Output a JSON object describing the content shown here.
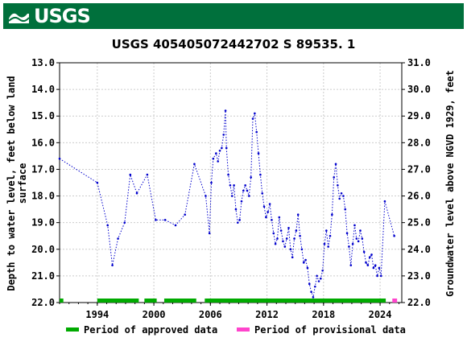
{
  "header": {
    "logo_text": "USGS",
    "color": "#00703c"
  },
  "chart_data": {
    "type": "line",
    "title": "USGS 405405072442702 S 89535. 1",
    "ylabel_left": [
      "Depth to water level, feet below land",
      "surface"
    ],
    "ylabel_right": "Groundwater level above NGVD 1929, feet",
    "y_left_range": [
      22.0,
      13.0
    ],
    "y_right_range": [
      22.0,
      31.0
    ],
    "x_range": [
      1990.0,
      2026.3
    ],
    "x_ticks": [
      {
        "value": 1994,
        "label": "1994"
      },
      {
        "value": 2000,
        "label": "2000"
      },
      {
        "value": 2006,
        "label": "2006"
      },
      {
        "value": 2012,
        "label": "2012"
      },
      {
        "value": 2018,
        "label": "2018"
      },
      {
        "value": 2024,
        "label": "2024"
      }
    ],
    "y_left_ticks": [
      "13.0",
      "14.0",
      "15.0",
      "16.0",
      "17.0",
      "18.0",
      "19.0",
      "20.0",
      "21.0",
      "22.0"
    ],
    "y_right_ticks": [
      "31.0",
      "30.0",
      "29.0",
      "28.0",
      "27.0",
      "26.0",
      "25.0",
      "24.0",
      "23.0",
      "22.0"
    ],
    "grid": true,
    "series": [
      {
        "color": "#0000cc",
        "x": [
          1990.0,
          1994.0,
          1995.1,
          1995.6,
          1996.2,
          1996.9,
          1997.5,
          1998.2,
          1999.3,
          2000.2,
          2001.2,
          2002.3,
          2003.3,
          2004.3,
          2005.5,
          2005.9,
          2006.1,
          2006.3,
          2006.6,
          2006.8,
          2007.0,
          2007.2,
          2007.4,
          2007.6,
          2007.7,
          2007.9,
          2008.1,
          2008.3,
          2008.5,
          2008.7,
          2008.9,
          2009.1,
          2009.3,
          2009.5,
          2009.7,
          2009.9,
          2010.1,
          2010.3,
          2010.5,
          2010.7,
          2010.9,
          2011.1,
          2011.3,
          2011.5,
          2011.7,
          2011.9,
          2012.1,
          2012.3,
          2012.5,
          2012.7,
          2012.9,
          2013.1,
          2013.3,
          2013.5,
          2013.7,
          2013.9,
          2014.1,
          2014.3,
          2014.5,
          2014.7,
          2014.9,
          2015.1,
          2015.3,
          2015.5,
          2015.7,
          2015.9,
          2016.1,
          2016.3,
          2016.5,
          2016.7,
          2016.9,
          2017.1,
          2017.3,
          2017.5,
          2017.7,
          2017.9,
          2018.1,
          2018.3,
          2018.5,
          2018.7,
          2018.9,
          2019.1,
          2019.3,
          2019.5,
          2019.7,
          2019.9,
          2020.1,
          2020.3,
          2020.5,
          2020.7,
          2020.9,
          2021.1,
          2021.3,
          2021.5,
          2021.7,
          2021.9,
          2022.1,
          2022.3,
          2022.5,
          2022.7,
          2022.9,
          2023.1,
          2023.3,
          2023.5,
          2023.7,
          2023.9,
          2024.1,
          2024.5,
          2025.5
        ],
        "y": [
          16.6,
          17.5,
          19.1,
          20.6,
          19.6,
          19.0,
          17.2,
          17.9,
          17.2,
          18.9,
          18.9,
          19.1,
          18.7,
          16.8,
          18.0,
          19.4,
          17.5,
          16.6,
          16.4,
          16.7,
          16.3,
          16.2,
          15.7,
          14.8,
          16.2,
          17.2,
          17.6,
          18.0,
          17.6,
          18.5,
          19.0,
          18.9,
          18.2,
          17.8,
          17.6,
          17.8,
          18.0,
          17.3,
          15.1,
          14.9,
          15.6,
          16.4,
          17.2,
          17.9,
          18.4,
          18.8,
          18.6,
          18.3,
          18.9,
          19.4,
          19.8,
          19.6,
          18.8,
          19.3,
          19.7,
          19.9,
          19.6,
          19.2,
          20.0,
          20.3,
          19.6,
          19.3,
          18.7,
          19.5,
          20.0,
          20.5,
          20.4,
          20.7,
          21.3,
          21.6,
          21.8,
          21.4,
          21.0,
          21.2,
          21.1,
          20.8,
          19.8,
          19.3,
          19.9,
          19.5,
          18.7,
          17.3,
          16.8,
          17.6,
          18.1,
          17.9,
          18.0,
          18.5,
          19.4,
          19.9,
          20.6,
          19.8,
          19.1,
          19.6,
          19.7,
          19.3,
          19.6,
          20.1,
          20.5,
          20.6,
          20.3,
          20.2,
          20.7,
          20.6,
          21.0,
          20.7,
          21.0,
          18.2,
          19.5
        ]
      }
    ],
    "periods": [
      {
        "name": "Period of approved data",
        "color": "#00aa00",
        "ranges": [
          [
            1990.0,
            1990.4
          ],
          [
            1994.0,
            1998.4
          ],
          [
            1999.0,
            2000.3
          ],
          [
            2001.1,
            2004.5
          ],
          [
            2005.4,
            2024.6
          ]
        ]
      },
      {
        "name": "Period of provisional data",
        "color": "#ff44cc",
        "ranges": [
          [
            2025.3,
            2025.8
          ]
        ]
      }
    ]
  }
}
